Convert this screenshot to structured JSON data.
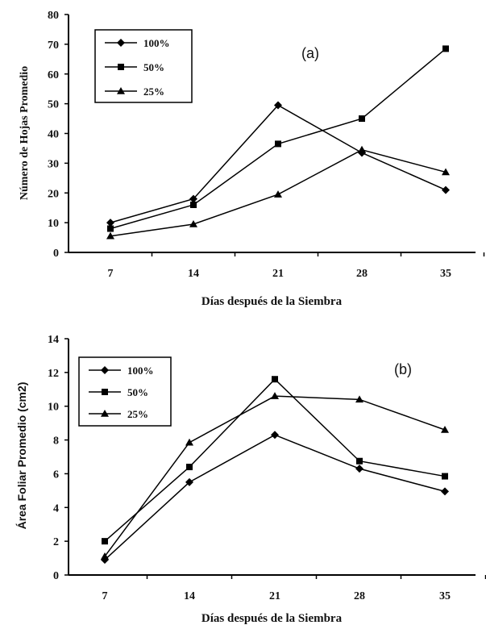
{
  "chart_data": [
    {
      "type": "line",
      "panel_label": "(a)",
      "xlabel": "Días después de la Siembra",
      "ylabel": "Número de Hojas Promedio",
      "categories": [
        "7",
        "14",
        "21",
        "28",
        "35"
      ],
      "yticks": [
        "0",
        "10",
        "20",
        "30",
        "40",
        "50",
        "60",
        "70",
        "80"
      ],
      "ylim": [
        0,
        80
      ],
      "legend_position": "top-left",
      "series": [
        {
          "name": "100%",
          "marker": "diamond",
          "values": [
            10,
            18,
            49.5,
            33.5,
            21
          ]
        },
        {
          "name": "50%",
          "marker": "square",
          "values": [
            8,
            16,
            36.5,
            45,
            68.5
          ]
        },
        {
          "name": "25%",
          "marker": "triangle",
          "values": [
            5.5,
            9.5,
            19.5,
            34.5,
            27
          ]
        }
      ]
    },
    {
      "type": "line",
      "panel_label": "(b)",
      "xlabel": "Días después de la Siembra",
      "ylabel": "Área Foliar Promedio (cm2)",
      "categories": [
        "7",
        "14",
        "21",
        "28",
        "35"
      ],
      "yticks": [
        "0",
        "2",
        "4",
        "6",
        "8",
        "10",
        "12",
        "14"
      ],
      "ylim": [
        0,
        14
      ],
      "legend_position": "top-left",
      "series": [
        {
          "name": "100%",
          "marker": "diamond",
          "values": [
            0.9,
            5.5,
            8.3,
            6.3,
            4.95
          ]
        },
        {
          "name": "50%",
          "marker": "square",
          "values": [
            2.0,
            6.4,
            11.6,
            6.75,
            5.85
          ]
        },
        {
          "name": "25%",
          "marker": "triangle",
          "values": [
            1.1,
            7.85,
            10.6,
            10.4,
            8.6
          ]
        }
      ]
    }
  ]
}
